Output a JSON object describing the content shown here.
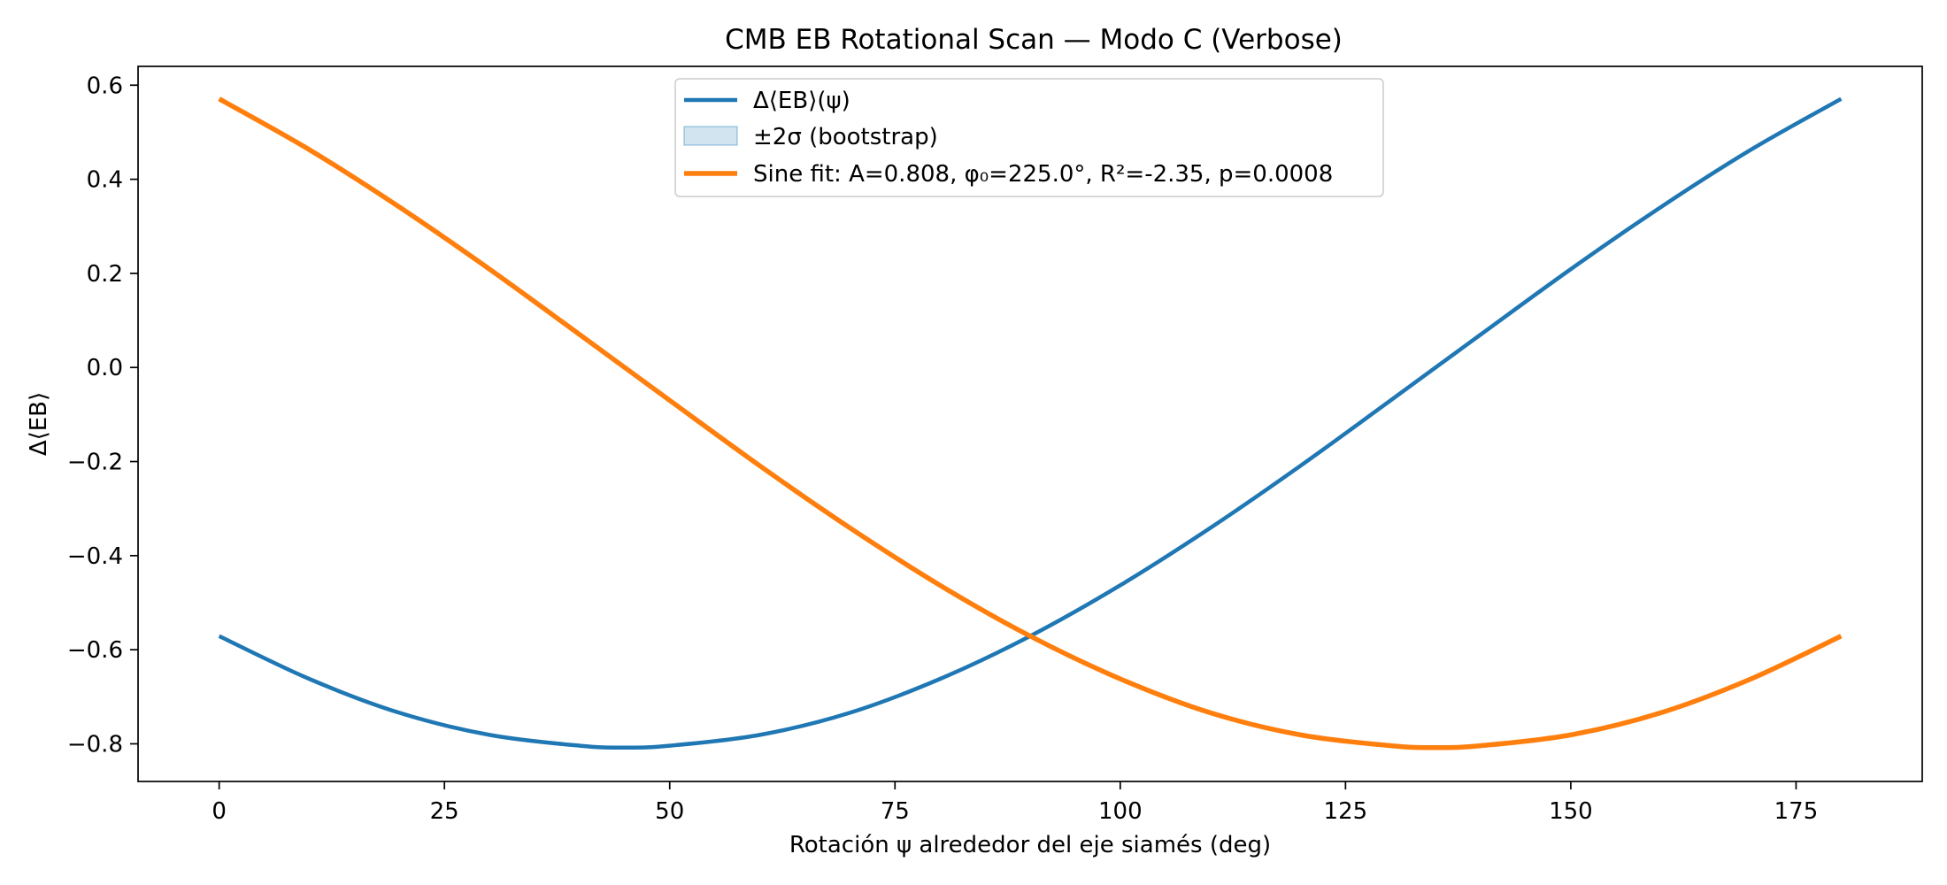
{
  "chart_data": {
    "type": "line",
    "title": "CMB EB Rotational Scan — Modo C (Verbose)",
    "xlabel": "Rotación ψ alrededor del eje siamés (deg)",
    "ylabel": "Δ⟨EB⟩",
    "xlim": [
      -9,
      189
    ],
    "ylim": [
      -0.88,
      0.64
    ],
    "xticks": [
      0,
      25,
      50,
      75,
      100,
      125,
      150,
      175
    ],
    "yticks": [
      -0.8,
      -0.6,
      -0.4,
      -0.2,
      0.0,
      0.2,
      0.4,
      0.6
    ],
    "xtick_labels": [
      "0",
      "25",
      "50",
      "75",
      "100",
      "125",
      "150",
      "175"
    ],
    "ytick_labels": [
      "−0.8",
      "−0.6",
      "−0.4",
      "−0.2",
      "0.0",
      "0.2",
      "0.4",
      "0.6"
    ],
    "grid": false,
    "legend_position": "top-center",
    "legend": [
      {
        "label": "Δ⟨EB⟩(ψ)",
        "kind": "line"
      },
      {
        "label": "±2σ (bootstrap)",
        "kind": "band"
      },
      {
        "label": "Sine fit: A=0.808, φ₀=225.0°, R²=-2.35, p=0.0008",
        "kind": "line"
      }
    ],
    "series": [
      {
        "name": "Δ⟨EB⟩(ψ)",
        "color": "#1f77b4",
        "x": [
          0,
          10,
          20,
          30,
          40,
          45,
          50,
          60,
          70,
          80,
          90,
          100,
          110,
          120,
          130,
          140,
          150,
          160,
          170,
          180
        ],
        "y": [
          -0.571,
          -0.662,
          -0.734,
          -0.781,
          -0.804,
          -0.808,
          -0.804,
          -0.781,
          -0.734,
          -0.662,
          -0.571,
          -0.463,
          -0.341,
          -0.209,
          -0.07,
          0.07,
          0.209,
          0.341,
          0.463,
          0.571
        ]
      },
      {
        "name": "Sine fit: A=0.808, φ₀=225.0°, R²=-2.35, p=0.0008",
        "color": "#ff7f0e",
        "x": [
          0,
          10,
          20,
          30,
          40,
          50,
          60,
          70,
          80,
          90,
          100,
          110,
          120,
          130,
          135,
          140,
          150,
          160,
          170,
          180
        ],
        "y": [
          0.571,
          0.463,
          0.341,
          0.209,
          0.07,
          -0.07,
          -0.209,
          -0.341,
          -0.463,
          -0.571,
          -0.662,
          -0.734,
          -0.781,
          -0.804,
          -0.808,
          -0.804,
          -0.781,
          -0.734,
          -0.662,
          -0.571
        ]
      }
    ],
    "band_color": "#1f77b4"
  }
}
